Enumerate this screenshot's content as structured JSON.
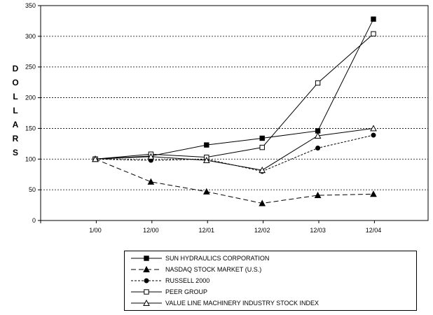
{
  "chart_data": {
    "type": "line",
    "title": "",
    "xlabel": "",
    "ylabel": "DOLLARS",
    "ylim": [
      0,
      350
    ],
    "yticks": [
      "0",
      "50",
      "100",
      "150",
      "200",
      "250",
      "300",
      "350"
    ],
    "ytick_values": [
      0,
      50,
      100,
      150,
      200,
      250,
      300,
      350
    ],
    "categories": [
      "1/00",
      "12/00",
      "12/01",
      "12/02",
      "12/03",
      "12/04"
    ],
    "grid": "horizontal dotted",
    "legend_placement": "bottom",
    "series": [
      {
        "name": "SUN HYDRAULICS CORPORATION",
        "values": [
          100,
          105,
          123,
          134,
          146,
          328
        ],
        "marker": "filled-square",
        "dash": "solid"
      },
      {
        "name": "NASDAQ STOCK MARKET (U.S.)",
        "values": [
          100,
          63,
          47,
          28,
          41,
          43
        ],
        "marker": "filled-triangle",
        "dash": "long-dash"
      },
      {
        "name": "RUSSELL 2000",
        "values": [
          100,
          98,
          100,
          80,
          118,
          139
        ],
        "marker": "filled-circle",
        "dash": "short-dash"
      },
      {
        "name": "PEER GROUP",
        "values": [
          100,
          108,
          103,
          119,
          224,
          304
        ],
        "marker": "open-square",
        "dash": "solid"
      },
      {
        "name": "VALUE LINE MACHINERY INDUSTRY STOCK INDEX",
        "values": [
          100,
          104,
          98,
          82,
          138,
          150
        ],
        "marker": "open-triangle",
        "dash": "solid"
      }
    ]
  }
}
